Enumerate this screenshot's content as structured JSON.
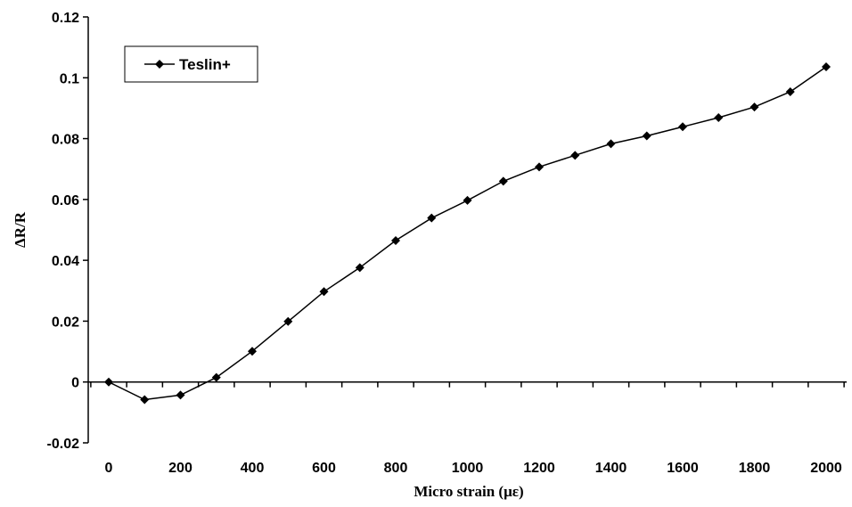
{
  "chart_data": {
    "type": "line",
    "title": "",
    "xlabel": "Micro strain (με)",
    "ylabel": "ΔR/R",
    "xlim": [
      0,
      2000
    ],
    "ylim": [
      -0.02,
      0.12
    ],
    "x_ticks": [
      "0",
      "200",
      "400",
      "600",
      "800",
      "1000",
      "1200",
      "1400",
      "1600",
      "1800",
      "2000"
    ],
    "y_ticks": [
      "-0.02",
      "0",
      "0.02",
      "0.04",
      "0.06",
      "0.08",
      "0.1",
      "0.12"
    ],
    "grid": false,
    "legend": {
      "position": "top-left",
      "entries": [
        "Teslin+"
      ]
    },
    "x": [
      0,
      100,
      200,
      300,
      400,
      500,
      600,
      700,
      800,
      900,
      1000,
      1100,
      1200,
      1300,
      1400,
      1500,
      1600,
      1700,
      1800,
      1900,
      2000
    ],
    "series": [
      {
        "name": "Teslin+",
        "color": "#000000",
        "marker": "diamond",
        "values": [
          0,
          -0.0058,
          -0.0043,
          0.0015,
          0.0101,
          0.0199,
          0.0297,
          0.0376,
          0.0465,
          0.0539,
          0.0597,
          0.066,
          0.0707,
          0.0745,
          0.0783,
          0.0809,
          0.0839,
          0.0869,
          0.0904,
          0.0954,
          0.1036
        ]
      }
    ]
  }
}
